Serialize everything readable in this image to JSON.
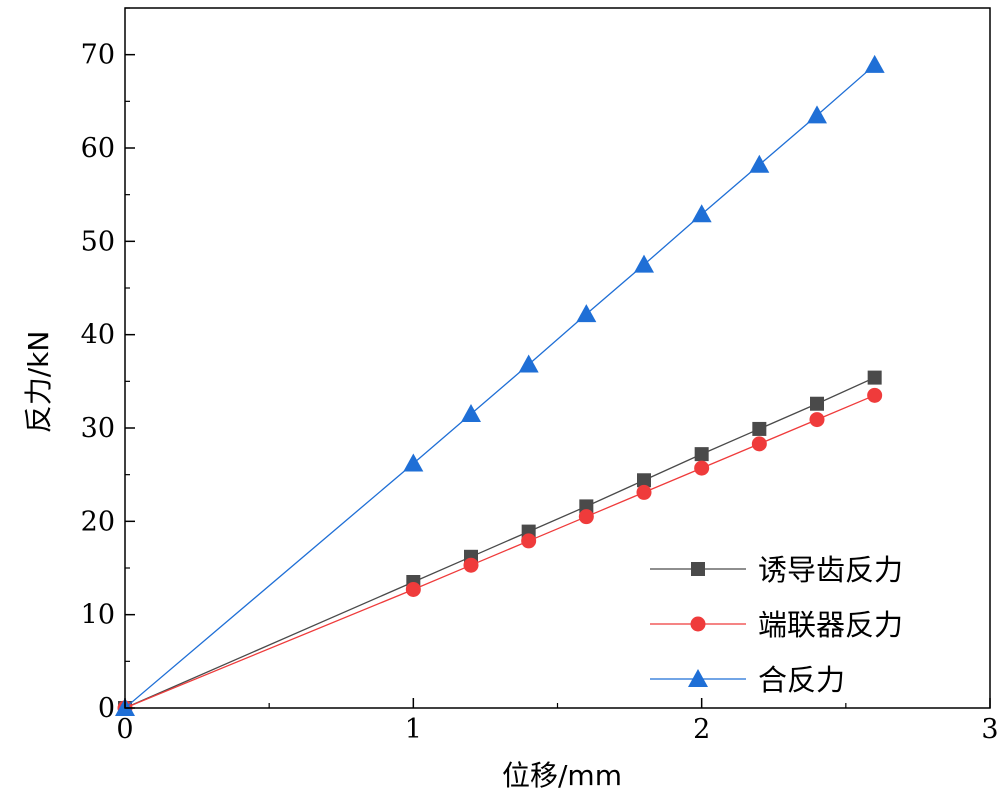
{
  "chart_data": {
    "type": "line",
    "xlabel": "位移/mm",
    "ylabel": "反力/kN",
    "xlim": [
      0,
      3
    ],
    "ylim": [
      0,
      75
    ],
    "xticks": [
      "0",
      "1",
      "2",
      "3"
    ],
    "yticks": [
      "0",
      "10",
      "20",
      "30",
      "40",
      "50",
      "60",
      "70"
    ],
    "grid": false,
    "legend_position": "bottom-right",
    "series": [
      {
        "name": "诱导齿反力",
        "color": "#4a4a4a",
        "marker": "square",
        "x": [
          0,
          1.0,
          1.2,
          1.4,
          1.6,
          1.8,
          2.0,
          2.2,
          2.4,
          2.6
        ],
        "y": [
          0,
          13.5,
          16.2,
          18.9,
          21.6,
          24.4,
          27.2,
          29.9,
          32.6,
          35.4
        ]
      },
      {
        "name": "端联器反力",
        "color": "#ef3b3b",
        "marker": "circle",
        "x": [
          0,
          1.0,
          1.2,
          1.4,
          1.6,
          1.8,
          2.0,
          2.2,
          2.4,
          2.6
        ],
        "y": [
          0,
          12.7,
          15.3,
          17.9,
          20.5,
          23.1,
          25.7,
          28.3,
          30.9,
          33.5
        ]
      },
      {
        "name": "合反力",
        "color": "#1f6fd6",
        "marker": "triangle",
        "x": [
          0,
          1.0,
          1.2,
          1.4,
          1.6,
          1.8,
          2.0,
          2.2,
          2.4,
          2.6
        ],
        "y": [
          0,
          26.2,
          31.5,
          36.8,
          42.2,
          47.5,
          52.9,
          58.2,
          63.5,
          68.9
        ]
      }
    ]
  }
}
